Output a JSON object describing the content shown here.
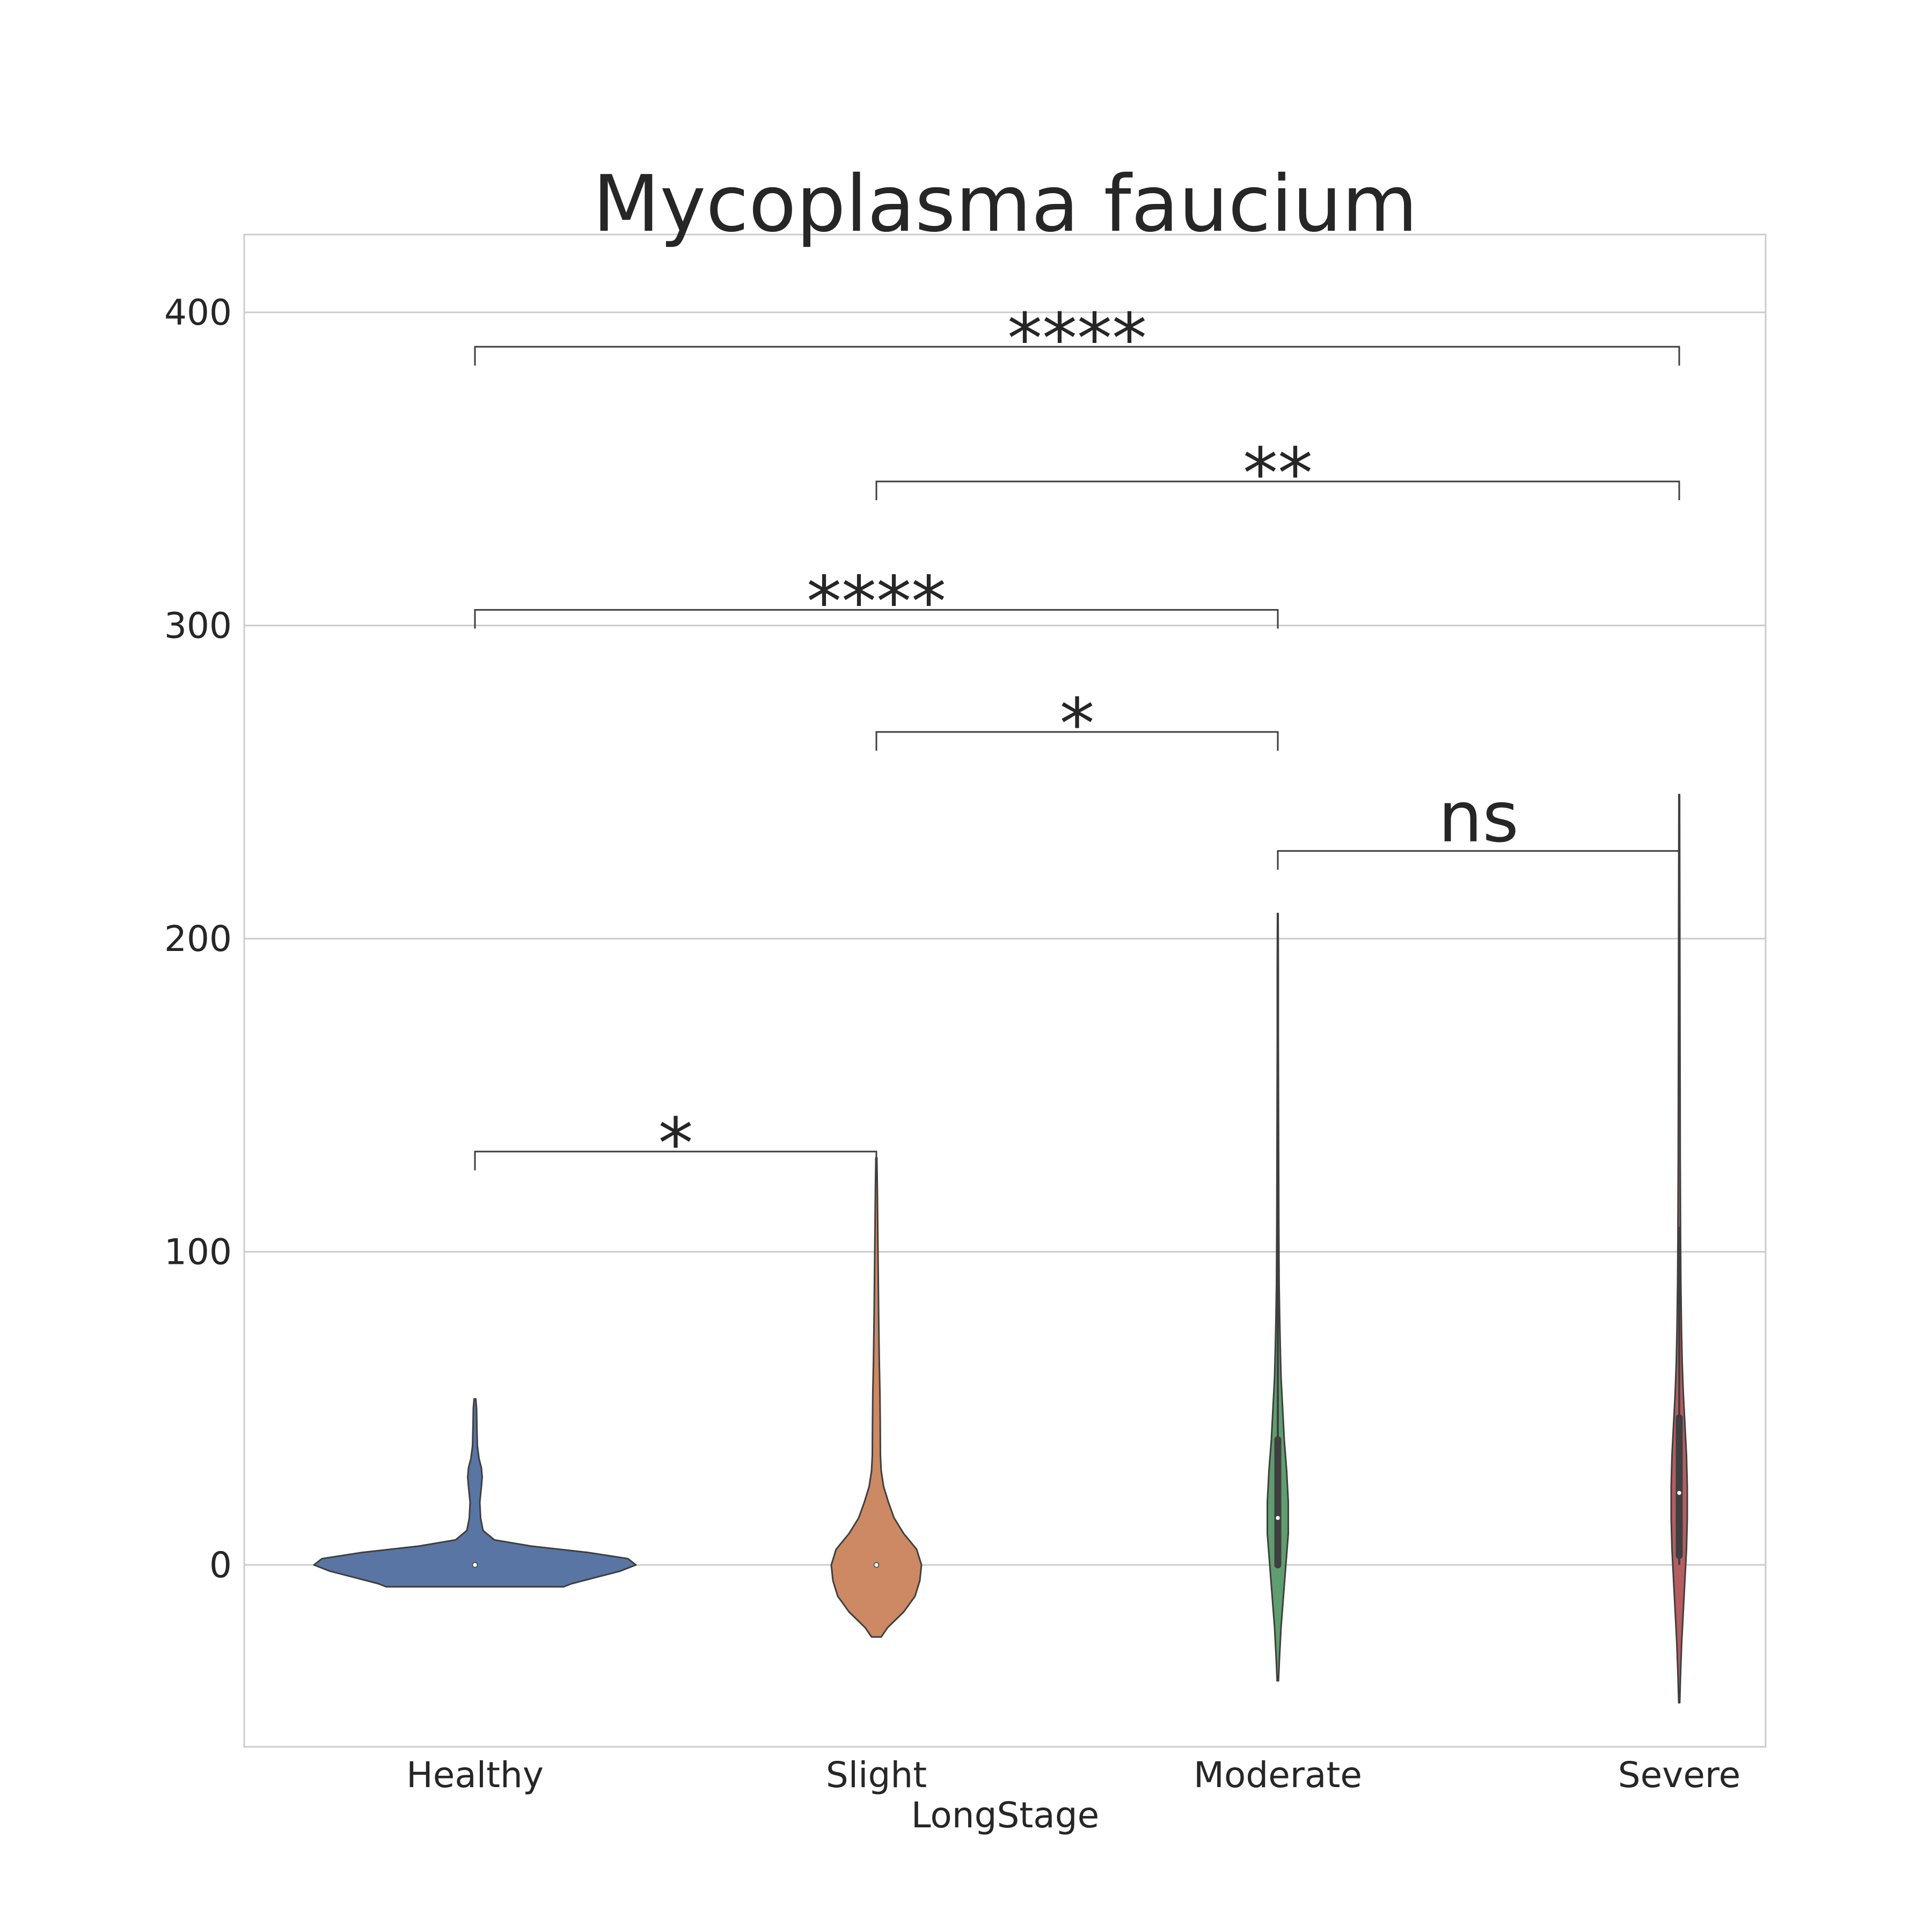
{
  "chart_data": {
    "type": "violin",
    "title": "Mycoplasma faucium",
    "xlabel": "LongStage",
    "ylabel": "",
    "ylim": [
      -58,
      425
    ],
    "yticks": [
      0,
      100,
      200,
      300,
      400
    ],
    "grid": true,
    "categories": [
      "Healthy",
      "Slight",
      "Moderate",
      "Severe"
    ],
    "colors": [
      "#5875a4",
      "#cc8963",
      "#5f9e6e",
      "#b55d60"
    ],
    "violins": [
      {
        "category": "Healthy",
        "median": 0,
        "q1": 0,
        "q3": 0,
        "whisker_low": 0,
        "whisker_high": 0,
        "profile": [
          [
            -7,
            0.55
          ],
          [
            -6,
            0.6
          ],
          [
            -4,
            0.75
          ],
          [
            -2,
            0.9
          ],
          [
            0,
            1.0
          ],
          [
            2,
            0.95
          ],
          [
            4,
            0.7
          ],
          [
            6,
            0.35
          ],
          [
            8,
            0.12
          ],
          [
            11,
            0.05
          ],
          [
            15,
            0.035
          ],
          [
            20,
            0.03
          ],
          [
            25,
            0.04
          ],
          [
            28,
            0.045
          ],
          [
            31,
            0.04
          ],
          [
            34,
            0.025
          ],
          [
            38,
            0.015
          ],
          [
            44,
            0.012
          ],
          [
            50,
            0.01
          ],
          [
            53,
            0.005
          ]
        ]
      },
      {
        "category": "Slight",
        "median": 0,
        "q1": 0,
        "q3": 0,
        "whisker_low": 0,
        "whisker_high": 0,
        "profile": [
          [
            -23,
            0.03
          ],
          [
            -20,
            0.07
          ],
          [
            -15,
            0.17
          ],
          [
            -10,
            0.24
          ],
          [
            -5,
            0.27
          ],
          [
            0,
            0.28
          ],
          [
            5,
            0.25
          ],
          [
            10,
            0.17
          ],
          [
            15,
            0.11
          ],
          [
            20,
            0.075
          ],
          [
            25,
            0.045
          ],
          [
            30,
            0.03
          ],
          [
            35,
            0.025
          ],
          [
            45,
            0.024
          ],
          [
            55,
            0.022
          ],
          [
            65,
            0.018
          ],
          [
            80,
            0.014
          ],
          [
            95,
            0.011
          ],
          [
            110,
            0.008
          ],
          [
            120,
            0.006
          ],
          [
            130,
            0.003
          ]
        ]
      },
      {
        "category": "Moderate",
        "median": 15,
        "q1": 0,
        "q3": 40,
        "whisker_low": 0,
        "whisker_high": 150,
        "profile": [
          [
            -37,
            0.004
          ],
          [
            -30,
            0.01
          ],
          [
            -20,
            0.02
          ],
          [
            -10,
            0.035
          ],
          [
            0,
            0.05
          ],
          [
            10,
            0.065
          ],
          [
            20,
            0.065
          ],
          [
            30,
            0.055
          ],
          [
            40,
            0.04
          ],
          [
            50,
            0.03
          ],
          [
            60,
            0.02
          ],
          [
            70,
            0.015
          ],
          [
            80,
            0.011
          ],
          [
            90,
            0.008
          ],
          [
            110,
            0.006
          ],
          [
            130,
            0.005
          ],
          [
            150,
            0.004
          ],
          [
            170,
            0.003
          ],
          [
            190,
            0.003
          ],
          [
            208,
            0.002
          ]
        ]
      },
      {
        "category": "Severe",
        "median": 23,
        "q1": 3,
        "q3": 47,
        "whisker_low": 0,
        "whisker_high": 108,
        "profile": [
          [
            -44,
            0.003
          ],
          [
            -35,
            0.008
          ],
          [
            -25,
            0.015
          ],
          [
            -15,
            0.025
          ],
          [
            -5,
            0.035
          ],
          [
            5,
            0.045
          ],
          [
            15,
            0.05
          ],
          [
            25,
            0.05
          ],
          [
            35,
            0.045
          ],
          [
            45,
            0.035
          ],
          [
            55,
            0.025
          ],
          [
            65,
            0.018
          ],
          [
            75,
            0.014
          ],
          [
            90,
            0.01
          ],
          [
            105,
            0.008
          ],
          [
            130,
            0.006
          ],
          [
            160,
            0.005
          ],
          [
            190,
            0.004
          ],
          [
            220,
            0.003
          ],
          [
            246,
            0.002
          ]
        ]
      }
    ],
    "annotations": [
      {
        "from": "Healthy",
        "to": "Slight",
        "y": 132,
        "drop": 6,
        "label": "*"
      },
      {
        "from": "Moderate",
        "to": "Severe",
        "y": 228,
        "drop": 6,
        "label": "ns"
      },
      {
        "from": "Slight",
        "to": "Moderate",
        "y": 266,
        "drop": 6,
        "label": "*"
      },
      {
        "from": "Healthy",
        "to": "Moderate",
        "y": 305,
        "drop": 6,
        "label": "****"
      },
      {
        "from": "Slight",
        "to": "Severe",
        "y": 346,
        "drop": 6,
        "label": "**"
      },
      {
        "from": "Healthy",
        "to": "Severe",
        "y": 389,
        "drop": 6,
        "label": "****"
      }
    ]
  }
}
